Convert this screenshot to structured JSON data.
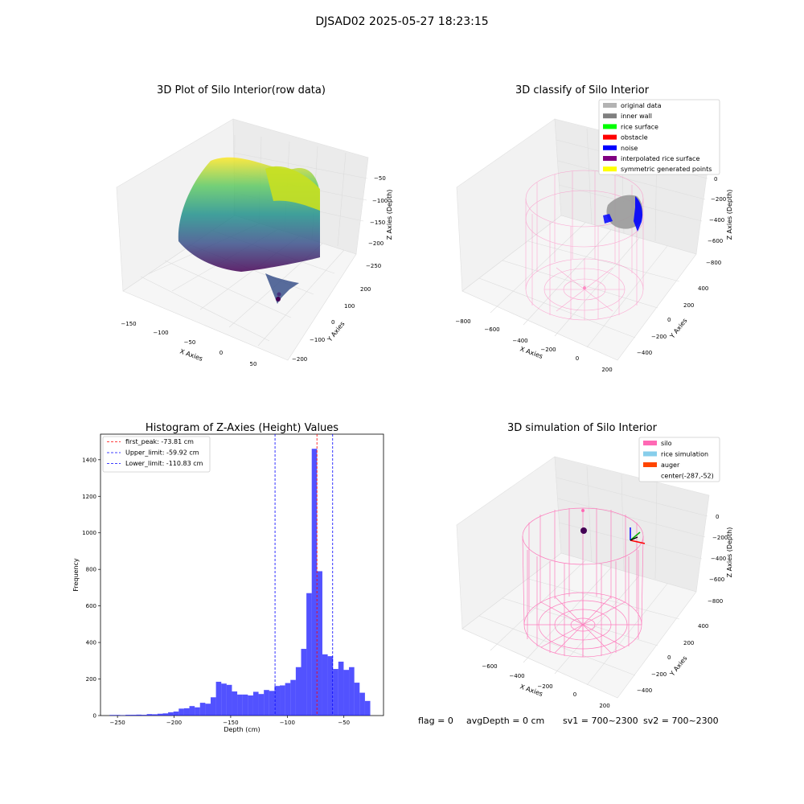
{
  "figure": {
    "suptitle": "DJSAD02 2025-05-27 18:23:15"
  },
  "panels": {
    "raw": {
      "title": "3D Plot of Silo Interior(row data)",
      "xlabel": "X Axies",
      "ylabel": "Y Axies",
      "zlabel": "Z Axies (Depth)",
      "xticks": [
        "−150",
        "−100",
        "−50",
        "0",
        "50"
      ],
      "yticks": [
        "200",
        "100",
        "0",
        "−100",
        "−200"
      ],
      "zticks": [
        "−50",
        "−100",
        "−150",
        "−200",
        "−250"
      ]
    },
    "classify": {
      "title": "3D classify of Silo Interior",
      "xlabel": "X Axies",
      "ylabel": "Y Axies",
      "zlabel": "Z Axies (Depth)",
      "xticks": [
        "−800",
        "−600",
        "−400",
        "−200",
        "0",
        "200"
      ],
      "yticks": [
        "400",
        "200",
        "0",
        "−200",
        "−400"
      ],
      "zticks": [
        "0",
        "−200",
        "−400",
        "−600",
        "−800"
      ],
      "legend": [
        {
          "label": "original data",
          "color": "#b3b3b3"
        },
        {
          "label": "inner wall",
          "color": "#808080"
        },
        {
          "label": "rice surface",
          "color": "#00ff00"
        },
        {
          "label": "obstacle",
          "color": "#ff0000"
        },
        {
          "label": "noise",
          "color": "#0000ff"
        },
        {
          "label": "interpolated rice surface",
          "color": "#800080"
        },
        {
          "label": "symmetric generated points",
          "color": "#ffff00"
        }
      ]
    },
    "simulation": {
      "title": "3D simulation of Silo Interior",
      "xlabel": "X Axies",
      "ylabel": "Y Axies",
      "zlabel": "Z Axies (Depth)",
      "xticks": [
        "−600",
        "−400",
        "−200",
        "0",
        "200"
      ],
      "yticks": [
        "400",
        "200",
        "0",
        "−200",
        "−400"
      ],
      "zticks": [
        "0",
        "−200",
        "−400",
        "−600",
        "−800"
      ],
      "legend": [
        {
          "label": "silo",
          "color": "#ff69b4"
        },
        {
          "label": "rice simulation",
          "color": "#87ceeb"
        },
        {
          "label": "auger",
          "color": "#ff4500"
        },
        {
          "label": "center(-287,-52)",
          "color": ""
        }
      ]
    },
    "footer": {
      "flag": "flag = 0",
      "avg": "avgDepth = 0 cm",
      "sv1": "sv1 = 700~2300",
      "sv2": "sv2 = 700~2300"
    }
  },
  "chart_data": [
    {
      "type": "scatter",
      "title": "3D Plot of Silo Interior(row data)",
      "xlabel": "X Axies",
      "ylabel": "Y Axies",
      "zlabel": "Z Axies (Depth)",
      "xlim": [
        -165,
        75
      ],
      "ylim": [
        -230,
        250
      ],
      "zlim": [
        -280,
        -30
      ],
      "colormap": "viridis",
      "grid": true
    },
    {
      "type": "scatter",
      "title": "3D classify of Silo Interior",
      "xlabel": "X Axies",
      "ylabel": "Y Axies",
      "zlabel": "Z Axies (Depth)",
      "xlim": [
        -850,
        250
      ],
      "ylim": [
        -550,
        550
      ],
      "zlim": [
        -900,
        30
      ],
      "series": [
        {
          "name": "original data",
          "color": "#b3b3b3"
        },
        {
          "name": "inner wall",
          "color": "#808080"
        },
        {
          "name": "rice surface",
          "color": "#00ff00"
        },
        {
          "name": "obstacle",
          "color": "#ff0000"
        },
        {
          "name": "noise",
          "color": "#0000ff"
        },
        {
          "name": "interpolated rice surface",
          "color": "#800080"
        },
        {
          "name": "symmetric generated points",
          "color": "#ffff00"
        }
      ],
      "legend_position": "upper right",
      "grid": true
    },
    {
      "type": "bar",
      "title": "Histogram of Z-Axies (Height) Values",
      "xlabel": "Depth (cm)",
      "ylabel": "Frequency",
      "xlim": [
        -265,
        -15
      ],
      "ylim": [
        0,
        1540
      ],
      "xticks": [
        -250,
        -200,
        -150,
        -100,
        -50
      ],
      "yticks": [
        0,
        200,
        400,
        600,
        800,
        1000,
        1200,
        1400
      ],
      "bin_start": -257,
      "bin_width": 4.7,
      "values": [
        3,
        3,
        2,
        4,
        4,
        5,
        4,
        8,
        7,
        10,
        12,
        18,
        22,
        38,
        40,
        52,
        45,
        70,
        65,
        100,
        185,
        175,
        168,
        132,
        115,
        115,
        110,
        130,
        118,
        140,
        135,
        162,
        165,
        178,
        195,
        265,
        365,
        670,
        1460,
        790,
        335,
        325,
        255,
        295,
        250,
        265,
        180,
        125,
        80
      ],
      "color": "#0000ff",
      "lines": [
        {
          "label": "first_peak: -73.81 cm",
          "x": -73.81,
          "color": "#ff0000"
        },
        {
          "label": "Upper_limit: -59.92 cm",
          "x": -59.92,
          "color": "#0000ff"
        },
        {
          "label": "Lower_limit: -110.83 cm",
          "x": -110.83,
          "color": "#0000ff"
        }
      ],
      "legend_position": "upper left"
    },
    {
      "type": "scatter",
      "title": "3D simulation of Silo Interior",
      "xlabel": "X Axies",
      "ylabel": "Y Axies",
      "zlabel": "Z Axies (Depth)",
      "xlim": [
        -750,
        250
      ],
      "ylim": [
        -500,
        500
      ],
      "zlim": [
        -900,
        100
      ],
      "series": [
        {
          "name": "silo",
          "color": "#ff69b4"
        },
        {
          "name": "rice simulation",
          "color": "#87ceeb"
        },
        {
          "name": "auger",
          "color": "#ff4500"
        }
      ],
      "annotations": [
        "center(-287,-52)"
      ],
      "legend_position": "upper right",
      "grid": true
    }
  ]
}
